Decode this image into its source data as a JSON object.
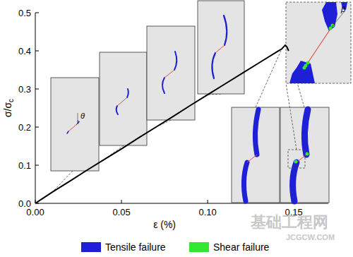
{
  "chart_data": {
    "type": "line",
    "xlabel": "ε (%)",
    "ylabel": "σ/σc",
    "x": [
      0,
      0.01,
      0.02,
      0.03,
      0.04,
      0.05,
      0.06,
      0.07,
      0.08,
      0.09,
      0.1,
      0.11,
      0.12,
      0.13,
      0.14,
      0.143,
      0.145,
      0.146,
      0.147
    ],
    "values": [
      0,
      0.03,
      0.058,
      0.087,
      0.115,
      0.143,
      0.172,
      0.2,
      0.228,
      0.257,
      0.285,
      0.313,
      0.341,
      0.369,
      0.397,
      0.405,
      0.415,
      0.41,
      0.4
    ],
    "color": "#000000",
    "xlim": [
      0,
      0.17
    ],
    "xticks": [
      {
        "value": 0,
        "label": "0.00"
      },
      {
        "value": 0.05,
        "label": "0.05"
      },
      {
        "value": 0.1,
        "label": "0.10"
      },
      {
        "value": 0.15,
        "label": "0.15"
      }
    ],
    "ylim": [
      0,
      0.5
    ],
    "yticks": [
      {
        "value": 0,
        "label": "0.0"
      },
      {
        "value": 0.1,
        "label": "0.1"
      },
      {
        "value": 0.2,
        "label": "0.2"
      },
      {
        "value": 0.3,
        "label": "0.3"
      },
      {
        "value": 0.4,
        "label": "0.4"
      },
      {
        "value": 0.5,
        "label": "0.5"
      }
    ],
    "failure_types": [
      {
        "name": "Tensile failure",
        "color": "#1f1fd6"
      },
      {
        "name": "Shear failure",
        "color": "#33e833"
      }
    ],
    "annotations": [
      "θ",
      "β"
    ],
    "watermark": [
      "基础工程网",
      "JCGCW.COM"
    ]
  }
}
